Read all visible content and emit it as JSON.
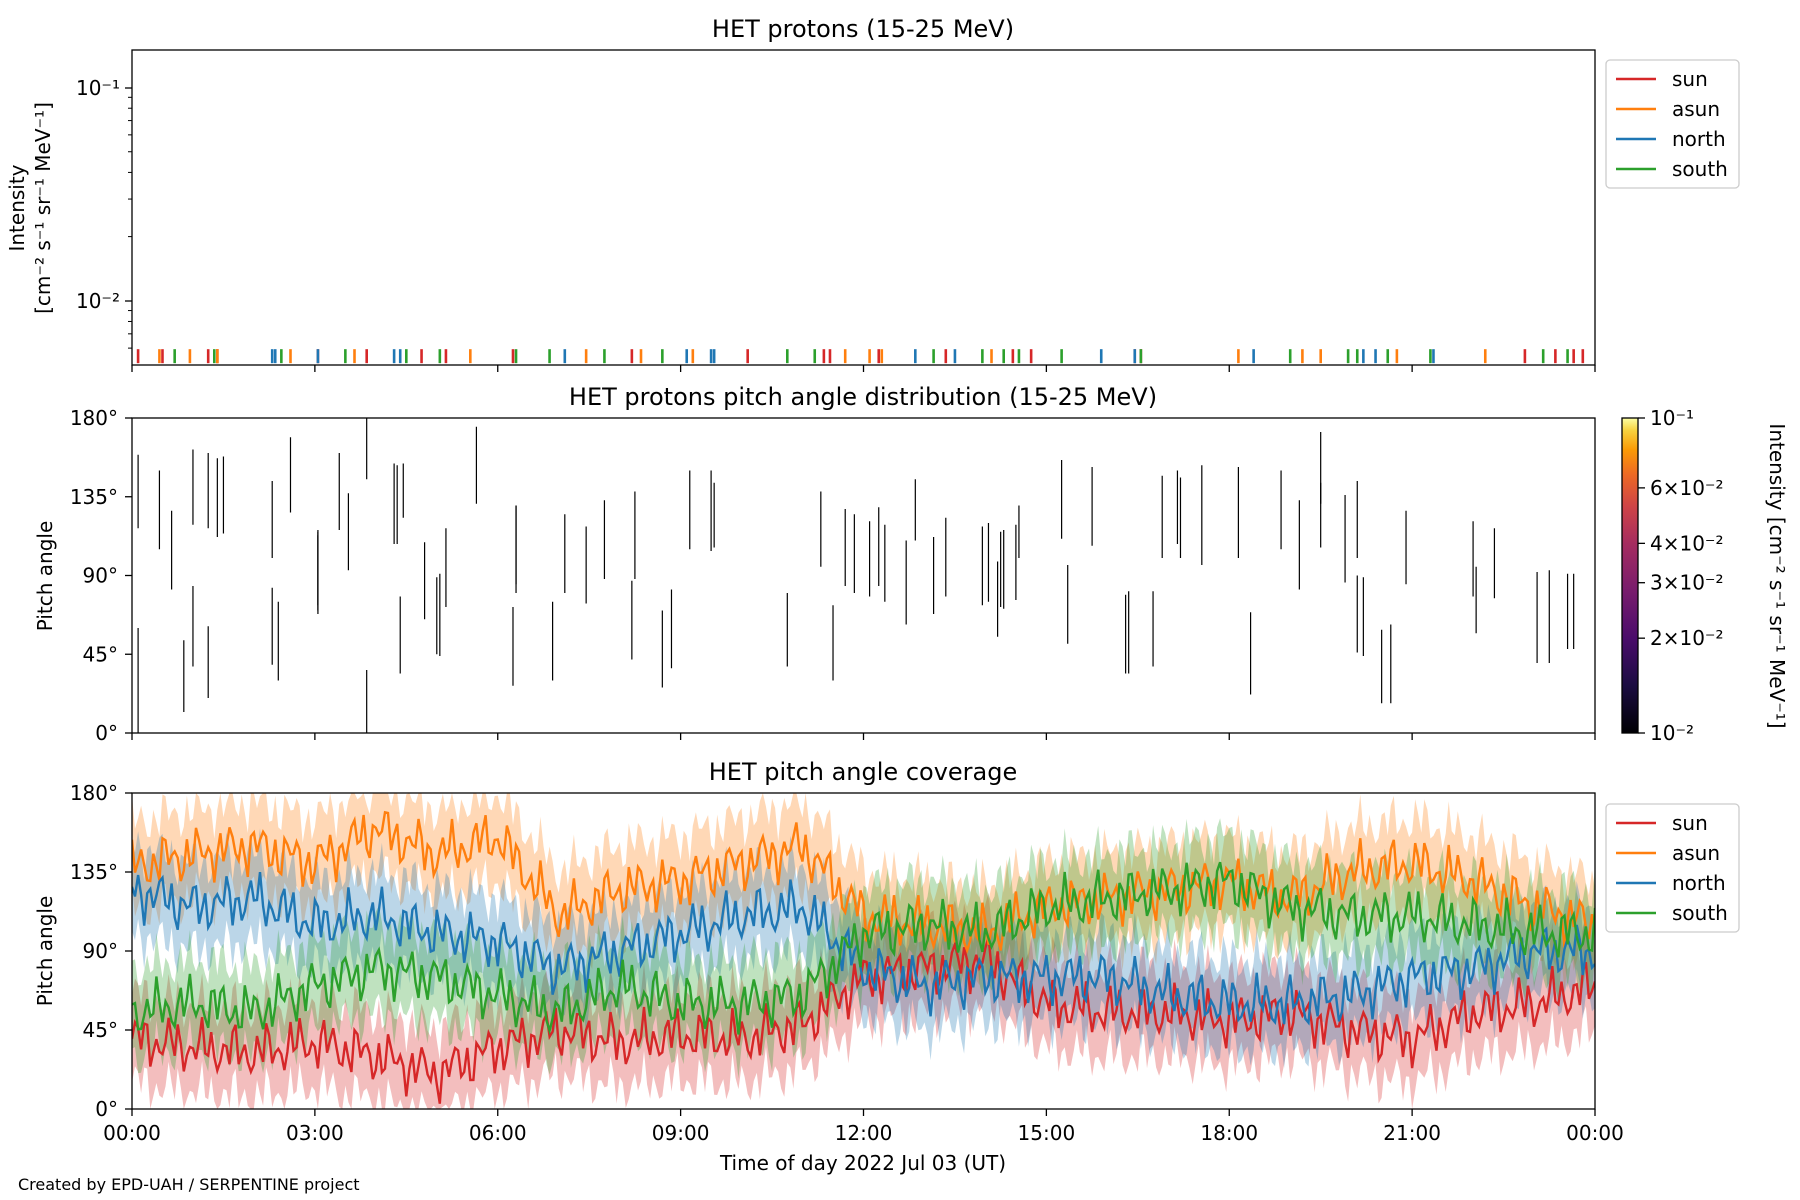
{
  "credit": "Created by EPD-UAH / SERPENTINE project",
  "xlabel": "Time of day 2022 Jul 03 (UT)",
  "xticks": [
    "00:00",
    "03:00",
    "06:00",
    "09:00",
    "12:00",
    "15:00",
    "18:00",
    "21:00",
    "00:00"
  ],
  "legend": [
    "sun",
    "asun",
    "north",
    "south"
  ],
  "colors": {
    "sun": "#d62728",
    "asun": "#ff7f0e",
    "north": "#1f77b4",
    "south": "#2ca02c"
  },
  "panel1": {
    "title": "HET protons (15-25 MeV)",
    "ylabel_line1": "Intensity",
    "ylabel_line2": "[cm⁻² s⁻¹ sr⁻¹ MeV⁻¹]",
    "ytick_1": "10⁻¹",
    "ytick_2": "10⁻²"
  },
  "panel2": {
    "title": "HET protons pitch angle distribution (15-25 MeV)",
    "ylabel": "Pitch angle",
    "yticks": [
      "0°",
      "45°",
      "90°",
      "135°",
      "180°"
    ],
    "colorbar_label": "Intensity [cm⁻² s⁻¹ sr⁻¹ MeV⁻¹]",
    "colorbar_ticks": [
      "10⁻²",
      "2×10⁻²",
      "3×10⁻²",
      "4×10⁻²",
      "6×10⁻²",
      "10⁻¹"
    ]
  },
  "panel3": {
    "title": "HET pitch angle coverage",
    "ylabel": "Pitch angle",
    "yticks": [
      "0°",
      "45°",
      "90°",
      "135°",
      "180°"
    ]
  },
  "chart_data": [
    {
      "type": "scatter",
      "title": "HET protons (15-25 MeV)",
      "ylabel": "Intensity [cm⁻² s⁻¹ sr⁻¹ MeV⁻¹]",
      "yscale": "log",
      "ylim": [
        0.005,
        0.15
      ],
      "xlim_hours": [
        0,
        24
      ],
      "legend_position": "upper right outside",
      "series": [
        {
          "name": "sun",
          "color": "#d62728",
          "x_hours": [
            0.1,
            0.5,
            1.25,
            1.4,
            3.05,
            3.85,
            4.75,
            5.15,
            6.25,
            8.2,
            10.1,
            11.35,
            11.45,
            12.25,
            13.35,
            14.45,
            14.75,
            16.45,
            16.55,
            22.85,
            23.35,
            23.65,
            23.8
          ],
          "y": [
            0.0055,
            0.0055,
            0.0055,
            0.0055,
            0.0055,
            0.0055,
            0.0055,
            0.0055,
            0.0055,
            0.0055,
            0.0055,
            0.0055,
            0.0055,
            0.0055,
            0.0055,
            0.0055,
            0.0055,
            0.0055,
            0.0055,
            0.0055,
            0.0055,
            0.0055,
            0.0055
          ]
        },
        {
          "name": "asun",
          "color": "#ff7f0e",
          "x_hours": [
            0.45,
            0.95,
            1.4,
            2.6,
            3.65,
            5.55,
            7.45,
            8.35,
            9.2,
            11.7,
            12.1,
            12.3,
            14.1,
            18.15,
            19.2,
            19.5,
            20.75,
            22.2
          ],
          "y": [
            0.0055,
            0.0055,
            0.0055,
            0.0055,
            0.0055,
            0.0055,
            0.0055,
            0.0055,
            0.0055,
            0.0055,
            0.0055,
            0.0055,
            0.0055,
            0.0055,
            0.0055,
            0.0055,
            0.0055,
            0.0055
          ]
        },
        {
          "name": "north",
          "color": "#1f77b4",
          "x_hours": [
            2.3,
            2.35,
            3.05,
            4.3,
            4.4,
            7.1,
            9.1,
            9.5,
            9.55,
            12.85,
            13.5,
            15.9,
            16.45,
            18.4,
            20.2,
            20.4,
            21.35
          ],
          "y": [
            0.0055,
            0.0055,
            0.0055,
            0.0055,
            0.0055,
            0.0055,
            0.0055,
            0.0055,
            0.0055,
            0.0055,
            0.0055,
            0.0055,
            0.0055,
            0.0055,
            0.0055,
            0.0055,
            0.0055
          ]
        },
        {
          "name": "south",
          "color": "#2ca02c",
          "x_hours": [
            0.7,
            1.35,
            2.45,
            3.5,
            4.5,
            5.05,
            6.3,
            6.85,
            7.75,
            8.7,
            10.75,
            11.2,
            13.15,
            13.95,
            14.3,
            14.55,
            15.25,
            16.55,
            19.0,
            19.95,
            20.1,
            20.6,
            21.3,
            23.15,
            23.55
          ],
          "y": [
            0.0055,
            0.0055,
            0.0055,
            0.0055,
            0.0055,
            0.0055,
            0.0055,
            0.0055,
            0.0055,
            0.0055,
            0.0055,
            0.0055,
            0.0055,
            0.0055,
            0.0055,
            0.0055,
            0.0055,
            0.0055,
            0.0055,
            0.0055,
            0.0055,
            0.0055,
            0.0055,
            0.0055,
            0.0055
          ]
        }
      ]
    },
    {
      "type": "heatmap",
      "title": "HET protons pitch angle distribution (15-25 MeV)",
      "ylabel": "Pitch angle",
      "ylim": [
        0,
        180
      ],
      "colorbar_range": [
        0.01,
        0.1
      ],
      "colorbar_scale": "log",
      "segments_hours_deg": [
        [
          0.1,
          117,
          159
        ],
        [
          0.1,
          0,
          60
        ],
        [
          0.45,
          105,
          150
        ],
        [
          0.65,
          82,
          127
        ],
        [
          0.85,
          12,
          53
        ],
        [
          1.0,
          38,
          84
        ],
        [
          1.0,
          119,
          162
        ],
        [
          1.25,
          20,
          61
        ],
        [
          1.25,
          117,
          160
        ],
        [
          1.4,
          112,
          157
        ],
        [
          1.5,
          114,
          158
        ],
        [
          2.3,
          39,
          83
        ],
        [
          2.3,
          100,
          144
        ],
        [
          2.4,
          30,
          75
        ],
        [
          2.6,
          126,
          169
        ],
        [
          3.05,
          68,
          113
        ],
        [
          3.05,
          70,
          115
        ],
        [
          3.05,
          73,
          116
        ],
        [
          3.4,
          116,
          160
        ],
        [
          3.55,
          93,
          137
        ],
        [
          3.85,
          0,
          36
        ],
        [
          3.85,
          145,
          180
        ],
        [
          4.3,
          108,
          154
        ],
        [
          4.35,
          108,
          153
        ],
        [
          4.45,
          123,
          154
        ],
        [
          4.4,
          34,
          78
        ],
        [
          4.8,
          65,
          109
        ],
        [
          5.0,
          45,
          89
        ],
        [
          5.05,
          44,
          91
        ],
        [
          5.15,
          72,
          117
        ],
        [
          5.65,
          131,
          175
        ],
        [
          6.25,
          27,
          72
        ],
        [
          6.3,
          85,
          130
        ],
        [
          6.3,
          80,
          130
        ],
        [
          6.9,
          30,
          75
        ],
        [
          7.1,
          80,
          125
        ],
        [
          7.45,
          74,
          118
        ],
        [
          7.75,
          88,
          133
        ],
        [
          8.2,
          42,
          87
        ],
        [
          8.25,
          88,
          138
        ],
        [
          8.7,
          26,
          70
        ],
        [
          8.85,
          37,
          82
        ],
        [
          9.15,
          105,
          150
        ],
        [
          9.5,
          104,
          150
        ],
        [
          9.55,
          106,
          143
        ],
        [
          10.75,
          38,
          80
        ],
        [
          11.3,
          95,
          138
        ],
        [
          11.5,
          30,
          73
        ],
        [
          11.7,
          84,
          128
        ],
        [
          11.85,
          80,
          125
        ],
        [
          12.1,
          78,
          121
        ],
        [
          12.25,
          84,
          129
        ],
        [
          12.35,
          75,
          119
        ],
        [
          12.85,
          110,
          145
        ],
        [
          12.7,
          62,
          110
        ],
        [
          13.15,
          68,
          112
        ],
        [
          13.35,
          78,
          123
        ],
        [
          13.95,
          73,
          118
        ],
        [
          14.05,
          75,
          120
        ],
        [
          14.2,
          55,
          98
        ],
        [
          14.3,
          71,
          116
        ],
        [
          14.25,
          72,
          115
        ],
        [
          14.5,
          76,
          119
        ],
        [
          14.55,
          100,
          130
        ],
        [
          15.35,
          51,
          96
        ],
        [
          15.25,
          111,
          156
        ],
        [
          15.75,
          107,
          152
        ],
        [
          16.3,
          34,
          79
        ],
        [
          16.35,
          34,
          81
        ],
        [
          16.75,
          38,
          81
        ],
        [
          16.9,
          100,
          147
        ],
        [
          17.2,
          100,
          146
        ],
        [
          17.15,
          108,
          150
        ],
        [
          17.55,
          96,
          153
        ],
        [
          18.15,
          100,
          152
        ],
        [
          18.35,
          22,
          69
        ],
        [
          18.85,
          105,
          150
        ],
        [
          19.15,
          82,
          133
        ],
        [
          19.5,
          131,
          172
        ],
        [
          19.5,
          106,
          143
        ],
        [
          19.9,
          86,
          136
        ],
        [
          20.1,
          46,
          90
        ],
        [
          20.2,
          44,
          89
        ],
        [
          20.1,
          100,
          144
        ],
        [
          20.5,
          17,
          59
        ],
        [
          20.65,
          17,
          62
        ],
        [
          20.9,
          85,
          127
        ],
        [
          22.0,
          78,
          121
        ],
        [
          22.05,
          57,
          95
        ],
        [
          22.35,
          77,
          117
        ],
        [
          23.05,
          40,
          92
        ],
        [
          23.25,
          40,
          93
        ],
        [
          23.55,
          48,
          91
        ],
        [
          23.65,
          48,
          91
        ]
      ]
    },
    {
      "type": "area",
      "title": "HET pitch angle coverage",
      "ylabel": "Pitch angle",
      "ylim": [
        0,
        180
      ],
      "legend_position": "upper right outside",
      "x_hours": [
        0,
        1,
        2,
        3,
        4,
        5,
        6,
        7,
        8,
        9,
        10,
        11,
        12,
        13,
        14,
        15,
        16,
        17,
        18,
        19,
        20,
        21,
        22,
        23,
        24
      ],
      "band_halfwidth_deg": 25,
      "series": [
        {
          "name": "sun",
          "values": [
            40,
            35,
            32,
            38,
            30,
            20,
            35,
            45,
            38,
            42,
            40,
            48,
            75,
            80,
            85,
            60,
            55,
            55,
            50,
            55,
            45,
            40,
            55,
            60,
            70
          ]
        },
        {
          "name": "asun",
          "values": [
            138,
            145,
            150,
            140,
            160,
            145,
            155,
            110,
            125,
            130,
            140,
            150,
            110,
            105,
            100,
            115,
            120,
            125,
            130,
            120,
            135,
            140,
            130,
            115,
            105
          ]
        },
        {
          "name": "north",
          "values": [
            125,
            115,
            120,
            105,
            110,
            100,
            95,
            80,
            90,
            100,
            110,
            115,
            80,
            70,
            75,
            75,
            75,
            65,
            60,
            60,
            65,
            75,
            80,
            90,
            90
          ]
        },
        {
          "name": "south",
          "values": [
            55,
            60,
            55,
            70,
            80,
            75,
            65,
            55,
            70,
            60,
            60,
            65,
            100,
            105,
            100,
            115,
            120,
            125,
            130,
            115,
            110,
            110,
            105,
            100,
            100
          ]
        }
      ]
    }
  ]
}
